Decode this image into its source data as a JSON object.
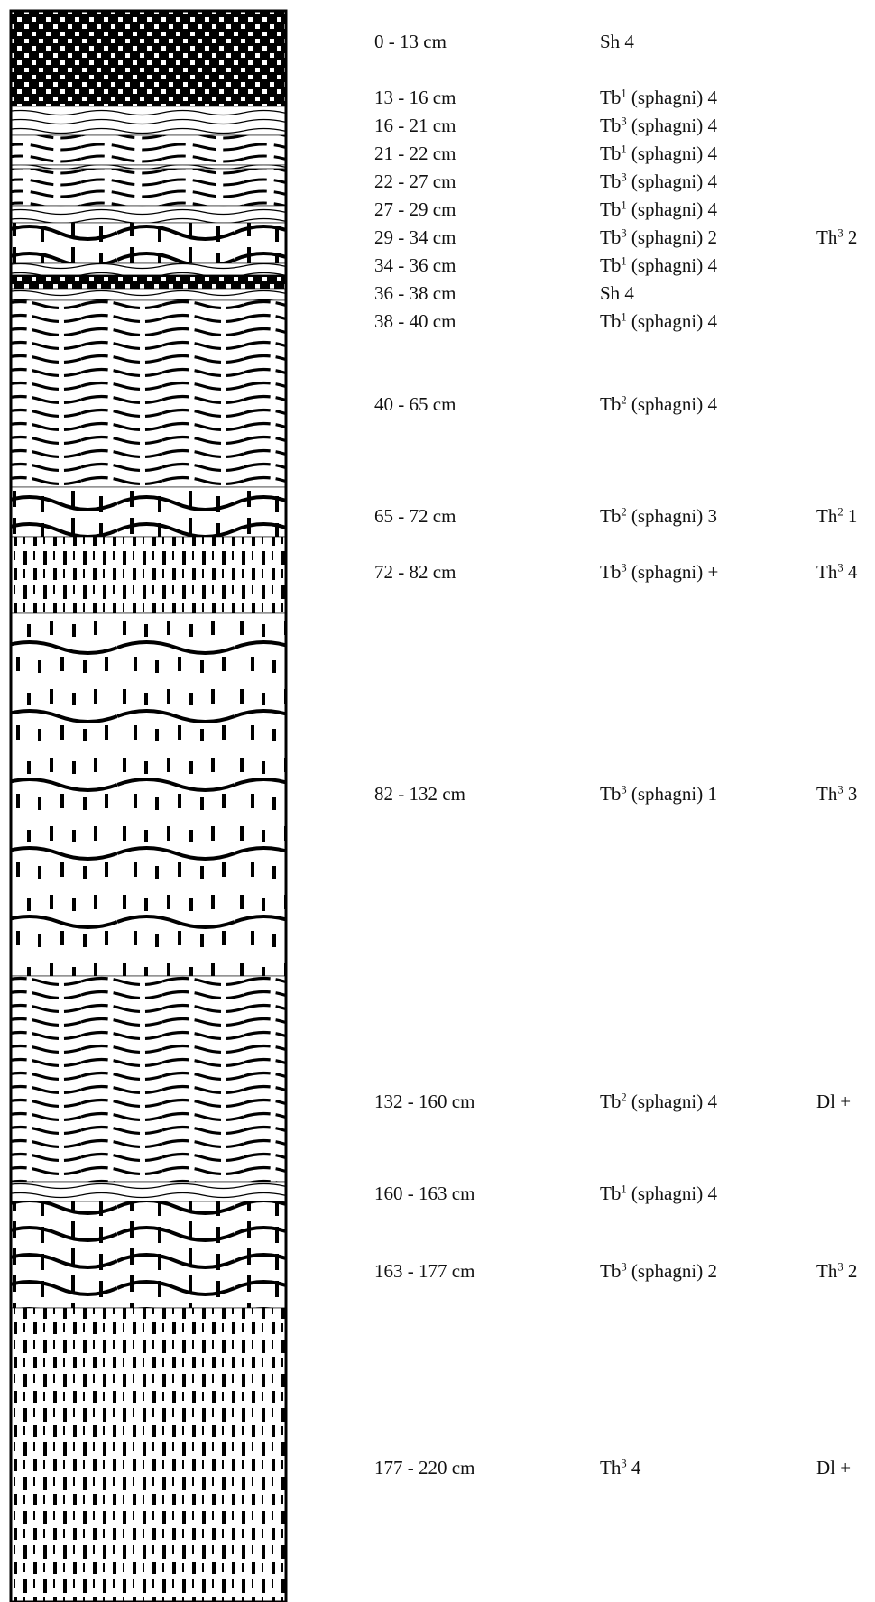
{
  "layers": [
    {
      "depth": "0 - 13 cm",
      "main": {
        "base": "Sh 4",
        "sup": "",
        "rest": ""
      },
      "extra": null,
      "pattern": "sh"
    },
    {
      "depth": "13 - 16 cm",
      "main": {
        "base": "Tb",
        "sup": "1",
        "rest": " (sphagni) 4"
      },
      "extra": null,
      "pattern": "tb1"
    },
    {
      "depth": "16 - 21 cm",
      "main": {
        "base": "Tb",
        "sup": "3",
        "rest": " (sphagni) 4"
      },
      "extra": null,
      "pattern": "tb3"
    },
    {
      "depth": "21 - 22 cm",
      "main": {
        "base": "Tb",
        "sup": "1",
        "rest": " (sphagni) 4"
      },
      "extra": null,
      "pattern": "tb1"
    },
    {
      "depth": "22 - 27 cm",
      "main": {
        "base": "Tb",
        "sup": "3",
        "rest": " (sphagni) 4"
      },
      "extra": null,
      "pattern": "tb3"
    },
    {
      "depth": "27 - 29 cm",
      "main": {
        "base": "Tb",
        "sup": "1",
        "rest": " (sphagni) 4"
      },
      "extra": null,
      "pattern": "tb1"
    },
    {
      "depth": "29 - 34 cm",
      "main": {
        "base": "Tb",
        "sup": "3",
        "rest": " (sphagni) 2"
      },
      "extra": {
        "base": "Th",
        "sup": "3",
        "rest": " 2"
      },
      "pattern": "mixed"
    },
    {
      "depth": "34 - 36 cm",
      "main": {
        "base": "Tb",
        "sup": "1",
        "rest": " (sphagni) 4"
      },
      "extra": null,
      "pattern": "tb1"
    },
    {
      "depth": "36 - 38 cm",
      "main": {
        "base": "Sh 4",
        "sup": "",
        "rest": ""
      },
      "extra": null,
      "pattern": "sh"
    },
    {
      "depth": "38 - 40 cm",
      "main": {
        "base": "Tb",
        "sup": "1",
        "rest": " (sphagni) 4"
      },
      "extra": null,
      "pattern": "tb1"
    },
    {
      "depth": "40 - 65 cm",
      "main": {
        "base": "Tb",
        "sup": "2",
        "rest": " (sphagni) 4"
      },
      "extra": null,
      "pattern": "tb2"
    },
    {
      "depth": "65 - 72 cm",
      "main": {
        "base": "Tb",
        "sup": "2",
        "rest": " (sphagni) 3"
      },
      "extra": {
        "base": "Th",
        "sup": "2",
        "rest": " 1"
      },
      "pattern": "mixed"
    },
    {
      "depth": "72 - 82 cm",
      "main": {
        "base": "Tb",
        "sup": "3",
        "rest": " (sphagni) +"
      },
      "extra": {
        "base": "Th",
        "sup": "3",
        "rest": " 4"
      },
      "pattern": "th"
    },
    {
      "depth": "82 - 132 cm",
      "main": {
        "base": "Tb",
        "sup": "3",
        "rest": " (sphagni) 1"
      },
      "extra": {
        "base": "Th",
        "sup": "3",
        "rest": " 3"
      },
      "pattern": "th-wavy"
    },
    {
      "depth": "132 - 160 cm",
      "main": {
        "base": "Tb",
        "sup": "2",
        "rest": " (sphagni) 4"
      },
      "extra": {
        "base": "Dl +",
        "sup": "",
        "rest": ""
      },
      "pattern": "tb2"
    },
    {
      "depth": "160 - 163 cm",
      "main": {
        "base": "Tb",
        "sup": "1",
        "rest": " (sphagni) 4"
      },
      "extra": null,
      "pattern": "tb1"
    },
    {
      "depth": "163 - 177 cm",
      "main": {
        "base": "Tb",
        "sup": "3",
        "rest": " (sphagni) 2"
      },
      "extra": {
        "base": "Th",
        "sup": "3",
        "rest": " 2"
      },
      "pattern": "mixed"
    },
    {
      "depth": "177 - 220 cm",
      "main": {
        "base": "Th",
        "sup": "3",
        "rest": " 4"
      },
      "extra": {
        "base": "Dl +",
        "sup": "",
        "rest": ""
      },
      "pattern": "th"
    }
  ]
}
